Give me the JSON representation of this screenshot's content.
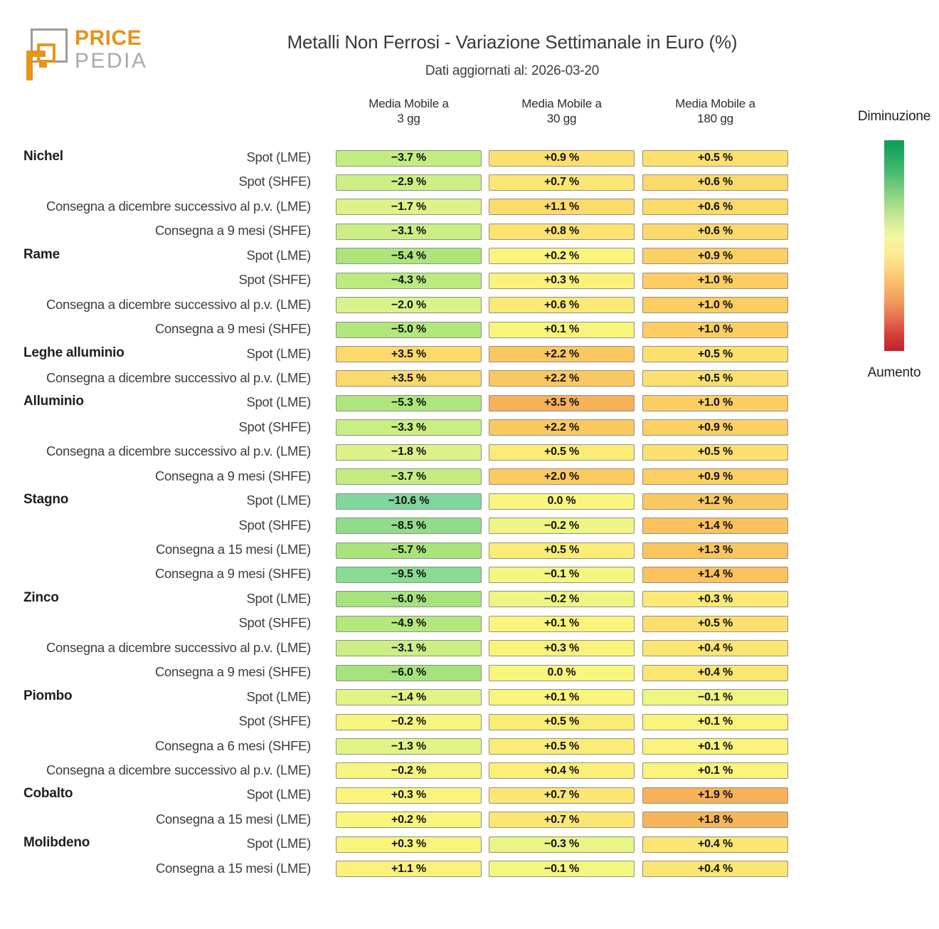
{
  "brand": {
    "name_top": "PRICE",
    "name_bottom": "PEDIA",
    "orange": "#e8941c",
    "gray": "#9b9b9b"
  },
  "header": {
    "title": "Metalli Non Ferrosi - Variazione Settimanale in Euro (%)",
    "subtitle": "Dati aggiornati al: 2026-03-20"
  },
  "columns": [
    {
      "line1": "Media Mobile a",
      "line2": "3 gg"
    },
    {
      "line1": "Media Mobile a",
      "line2": "30 gg"
    },
    {
      "line1": "Media Mobile a",
      "line2": "180 gg"
    }
  ],
  "legend": {
    "top_label": "Diminuzione",
    "bottom_label": "Aumento",
    "gradient": [
      "#0e9c58",
      "#27aa64",
      "#4cba72",
      "#7bcc80",
      "#a8dd8c",
      "#d2ec9b",
      "#f3f6a3",
      "#fdeb94",
      "#fbd47c",
      "#f8b668",
      "#f29a5e",
      "#e56e50",
      "#d4403a",
      "#c22130"
    ]
  },
  "chart_data": {
    "type": "heatmap",
    "unit": "%",
    "title": "Metalli Non Ferrosi - Variazione Settimanale in Euro (%)",
    "updated": "2026-03-20",
    "columns": [
      "Media Mobile a 3 gg",
      "Media Mobile a 30 gg",
      "Media Mobile a 180 gg"
    ],
    "groups": [
      {
        "metal": "Nichel",
        "rows": [
          {
            "label": "Spot (LME)",
            "values": [
              -3.7,
              0.9,
              0.5
            ]
          },
          {
            "label": "Spot (SHFE)",
            "values": [
              -2.9,
              0.7,
              0.6
            ]
          },
          {
            "label": "Consegna a dicembre successivo al p.v. (LME)",
            "values": [
              -1.7,
              1.1,
              0.6
            ]
          },
          {
            "label": "Consegna a 9 mesi (SHFE)",
            "values": [
              -3.1,
              0.8,
              0.6
            ]
          }
        ]
      },
      {
        "metal": "Rame",
        "rows": [
          {
            "label": "Spot (LME)",
            "values": [
              -5.4,
              0.2,
              0.9
            ]
          },
          {
            "label": "Spot (SHFE)",
            "values": [
              -4.3,
              0.3,
              1.0
            ]
          },
          {
            "label": "Consegna a dicembre successivo al p.v. (LME)",
            "values": [
              -2.0,
              0.6,
              1.0
            ]
          },
          {
            "label": "Consegna a 9 mesi (SHFE)",
            "values": [
              -5.0,
              0.1,
              1.0
            ]
          }
        ]
      },
      {
        "metal": "Leghe alluminio",
        "rows": [
          {
            "label": "Spot (LME)",
            "values": [
              3.5,
              2.2,
              0.5
            ]
          },
          {
            "label": "Consegna a dicembre successivo al p.v. (LME)",
            "values": [
              3.5,
              2.2,
              0.5
            ]
          }
        ]
      },
      {
        "metal": "Alluminio",
        "rows": [
          {
            "label": "Spot (LME)",
            "values": [
              -5.3,
              3.5,
              1.0
            ]
          },
          {
            "label": "Spot (SHFE)",
            "values": [
              -3.3,
              2.2,
              0.9
            ]
          },
          {
            "label": "Consegna a dicembre successivo al p.v. (LME)",
            "values": [
              -1.8,
              0.5,
              0.5
            ]
          },
          {
            "label": "Consegna a 9 mesi (SHFE)",
            "values": [
              -3.7,
              2.0,
              0.9
            ]
          }
        ]
      },
      {
        "metal": "Stagno",
        "rows": [
          {
            "label": "Spot (LME)",
            "values": [
              -10.6,
              0.0,
              1.2
            ]
          },
          {
            "label": "Spot (SHFE)",
            "values": [
              -8.5,
              -0.2,
              1.4
            ]
          },
          {
            "label": "Consegna a 15 mesi (LME)",
            "values": [
              -5.7,
              0.5,
              1.3
            ]
          },
          {
            "label": "Consegna a 9 mesi (SHFE)",
            "values": [
              -9.5,
              -0.1,
              1.4
            ]
          }
        ]
      },
      {
        "metal": "Zinco",
        "rows": [
          {
            "label": "Spot (LME)",
            "values": [
              -6.0,
              -0.2,
              0.3
            ]
          },
          {
            "label": "Spot (SHFE)",
            "values": [
              -4.9,
              0.1,
              0.5
            ]
          },
          {
            "label": "Consegna a dicembre successivo al p.v. (LME)",
            "values": [
              -3.1,
              0.3,
              0.4
            ]
          },
          {
            "label": "Consegna a 9 mesi (SHFE)",
            "values": [
              -6.0,
              0.0,
              0.4
            ]
          }
        ]
      },
      {
        "metal": "Piombo",
        "rows": [
          {
            "label": "Spot (LME)",
            "values": [
              -1.4,
              0.1,
              -0.1
            ]
          },
          {
            "label": "Spot (SHFE)",
            "values": [
              -0.2,
              0.5,
              0.1
            ]
          },
          {
            "label": "Consegna a 6 mesi (SHFE)",
            "values": [
              -1.3,
              0.5,
              0.1
            ]
          },
          {
            "label": "Consegna a dicembre successivo al p.v. (LME)",
            "values": [
              -0.2,
              0.4,
              0.1
            ]
          }
        ]
      },
      {
        "metal": "Cobalto",
        "rows": [
          {
            "label": "Spot (LME)",
            "values": [
              0.3,
              0.7,
              1.9
            ]
          },
          {
            "label": "Consegna a 15 mesi (LME)",
            "values": [
              0.2,
              0.7,
              1.8
            ]
          }
        ]
      },
      {
        "metal": "Molibdeno",
        "rows": [
          {
            "label": "Spot (LME)",
            "values": [
              0.3,
              -0.3,
              0.4
            ]
          },
          {
            "label": "Consegna a 15 mesi (LME)",
            "values": [
              1.1,
              -0.1,
              0.4
            ]
          }
        ]
      }
    ],
    "color_scale": {
      "per_column_max_abs": [
        10.6,
        3.5,
        1.9
      ],
      "stops": [
        [
          -1.0,
          "#80d79d"
        ],
        [
          -0.8,
          "#91dc8a"
        ],
        [
          -0.55,
          "#a7e37b"
        ],
        [
          -0.35,
          "#c4ed81"
        ],
        [
          -0.18,
          "#daf28a"
        ],
        [
          -0.07,
          "#ecf584"
        ],
        [
          0.0,
          "#f8f67d"
        ],
        [
          0.1,
          "#fbf17b"
        ],
        [
          0.18,
          "#fbe875"
        ],
        [
          0.32,
          "#fbda6c"
        ],
        [
          0.52,
          "#fbcd62"
        ],
        [
          0.68,
          "#fac55f"
        ],
        [
          0.86,
          "#f9b95c"
        ],
        [
          1.0,
          "#f8b158"
        ]
      ],
      "cell_border": "#8f8f8f"
    }
  }
}
